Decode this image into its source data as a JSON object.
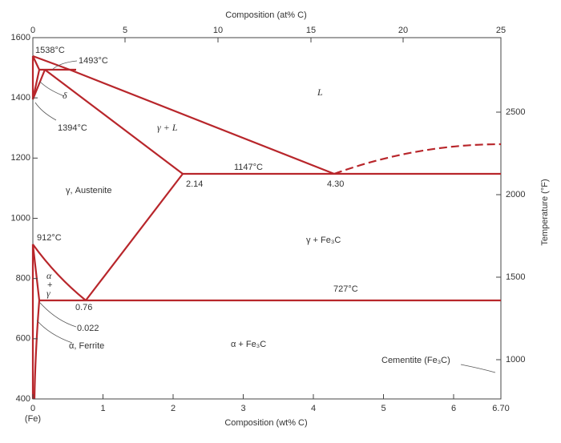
{
  "axes": {
    "top_title": "Composition (at% C)",
    "bottom_title": "Composition (wt% C)",
    "right_title": "Temperature (°F)",
    "bottom_origin": "(Fe)",
    "top_ticks": [
      "0",
      "5",
      "10",
      "15",
      "20",
      "25"
    ],
    "bottom_ticks": [
      "0",
      "1",
      "2",
      "3",
      "4",
      "5",
      "6",
      "6.70"
    ],
    "left_ticks": [
      "1600",
      "1400",
      "1200",
      "1000",
      "800",
      "600",
      "400"
    ],
    "right_ticks": [
      "2500",
      "2000",
      "1500",
      "1000"
    ]
  },
  "labels": [
    "1538°C",
    "1493°C",
    "δ",
    "1394°C",
    "γ + L",
    "L",
    "1147°C",
    "2.14",
    "4.30",
    "γ, Austenite",
    "912°C",
    "γ + Fe₃C",
    "727°C",
    "α",
    "+",
    "γ",
    "0.76",
    "0.022",
    "α, Ferrite",
    "α + Fe₃C",
    "Cementite (Fe₃C)"
  ]
}
